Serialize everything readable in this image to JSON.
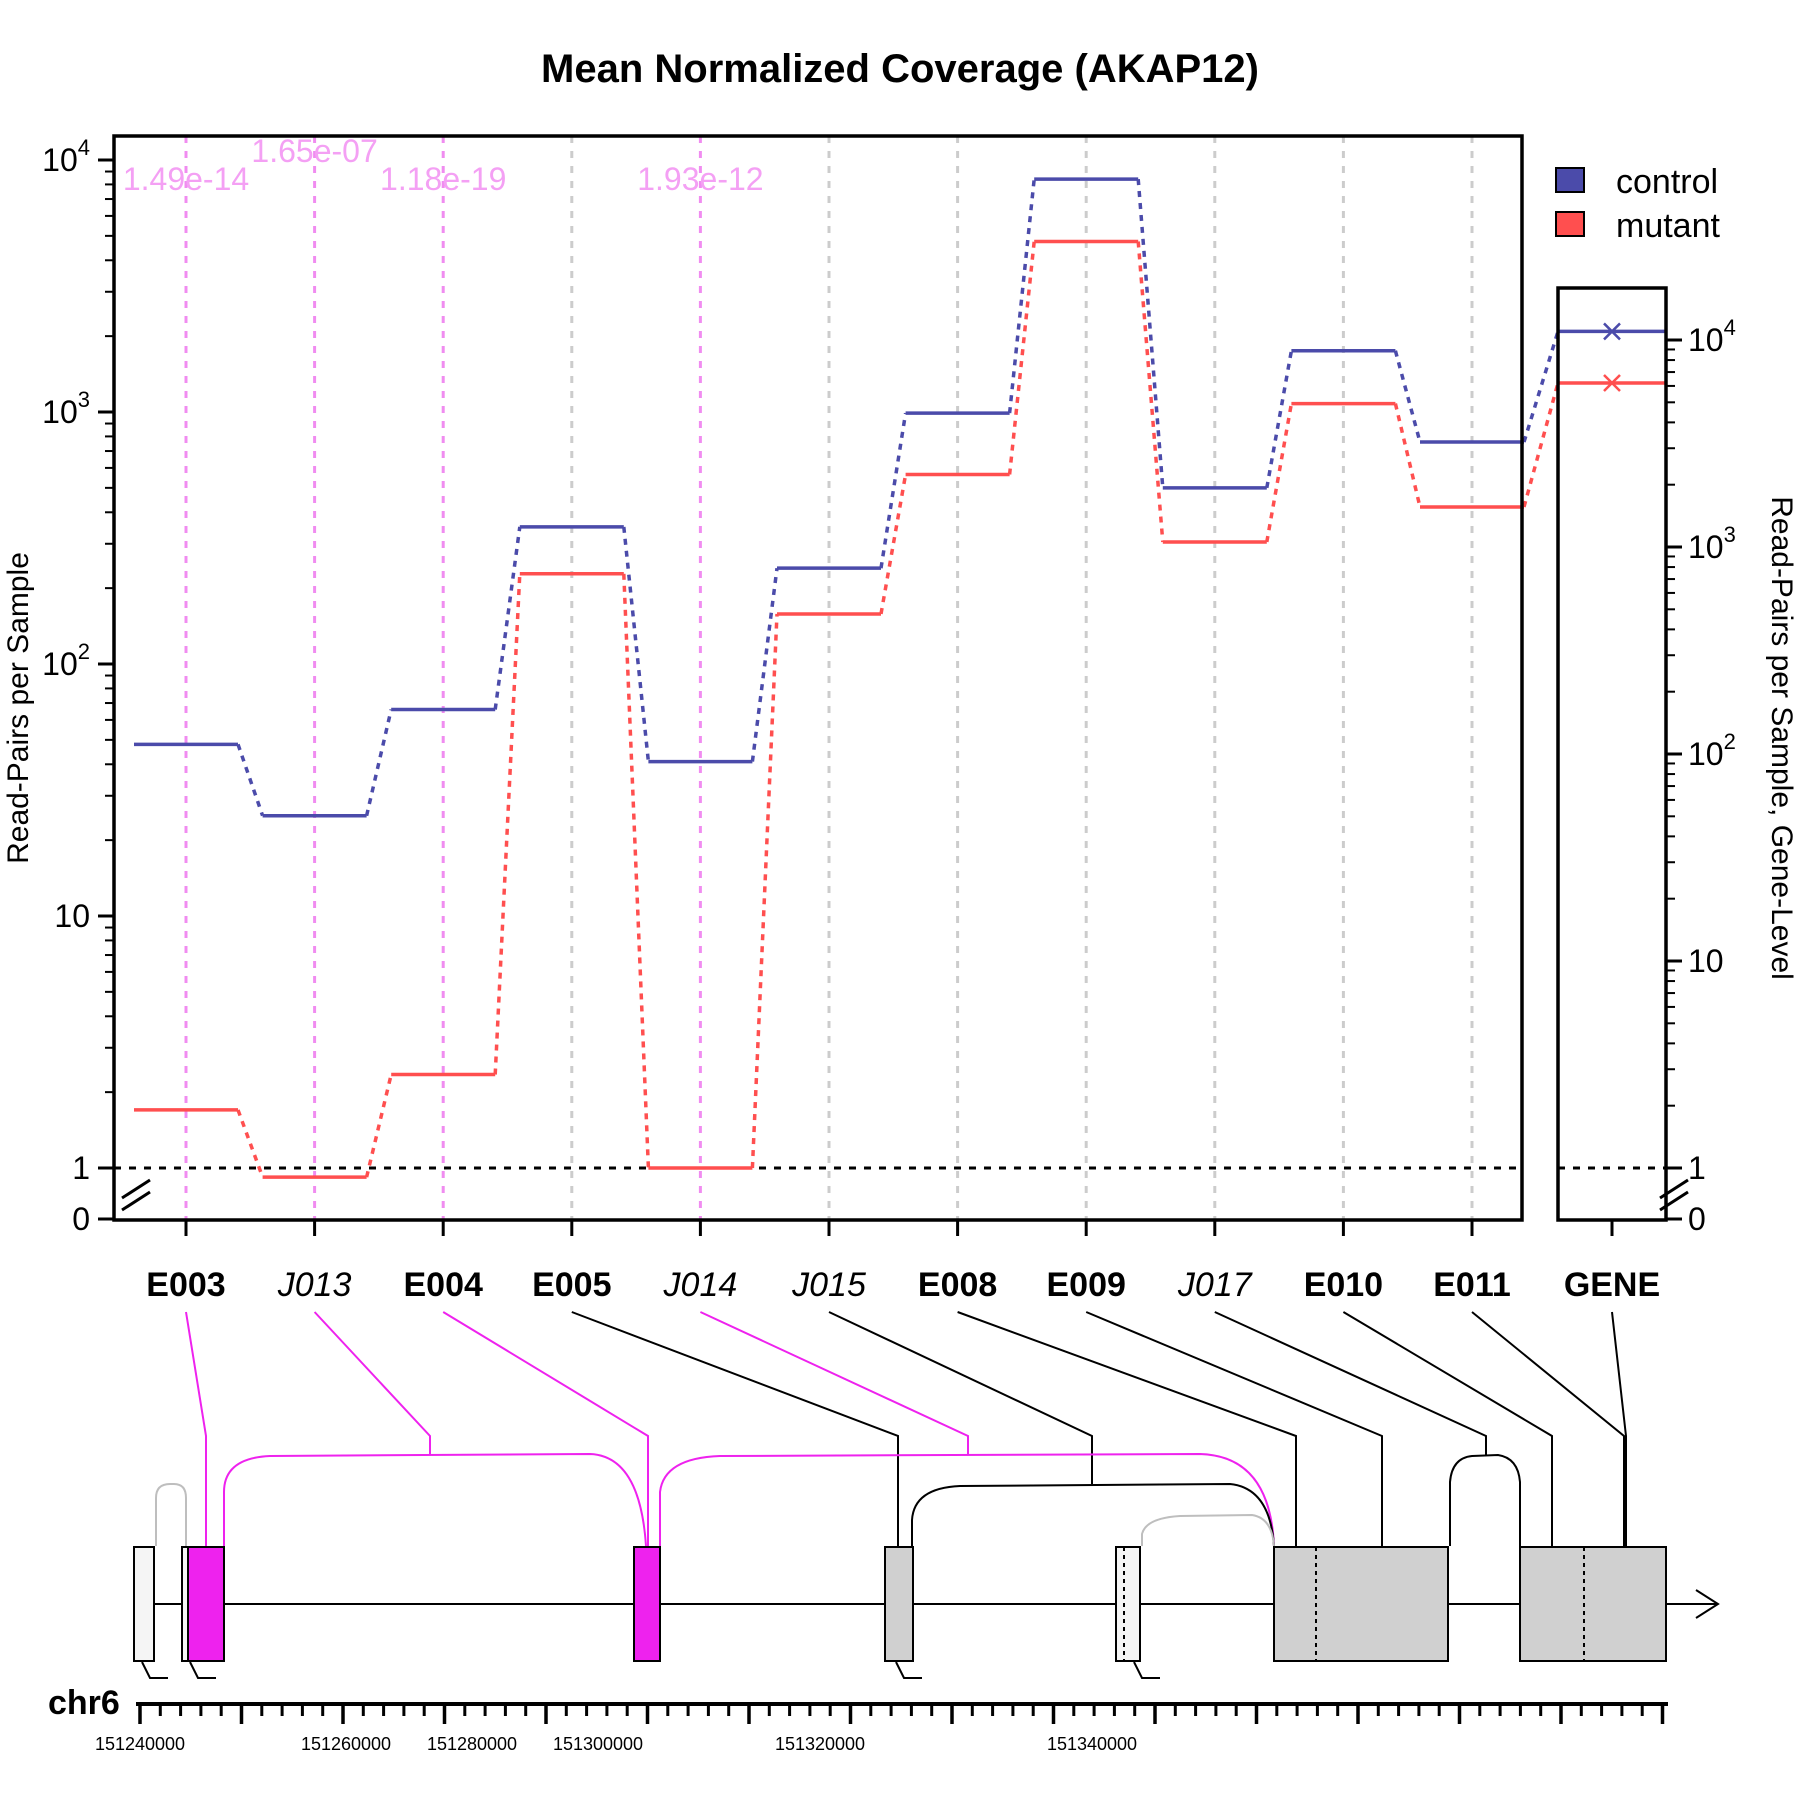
{
  "chart_data": {
    "type": "line",
    "title": "Mean Normalized Coverage (AKAP12)",
    "ylabel": "Read-Pairs per Sample",
    "ylabel_right": "Read-Pairs per Sample, Gene-Level",
    "yscale": "log",
    "y_tick_labels": [
      "0",
      "1",
      "10",
      "10",
      "10",
      "10"
    ],
    "y_tick_exponents": [
      "",
      "",
      "",
      "2",
      "3",
      "4"
    ],
    "features": [
      {
        "id": "E003",
        "kind": "exon"
      },
      {
        "id": "J013",
        "kind": "junction"
      },
      {
        "id": "E004",
        "kind": "exon"
      },
      {
        "id": "E005",
        "kind": "exon"
      },
      {
        "id": "J014",
        "kind": "junction"
      },
      {
        "id": "J015",
        "kind": "junction"
      },
      {
        "id": "E008",
        "kind": "exon"
      },
      {
        "id": "E009",
        "kind": "exon"
      },
      {
        "id": "J017",
        "kind": "junction"
      },
      {
        "id": "E010",
        "kind": "exon"
      },
      {
        "id": "E011",
        "kind": "exon"
      }
    ],
    "series": [
      {
        "name": "control",
        "color": "#4B4BAA",
        "values": [
          48,
          25,
          66,
          350,
          41,
          240,
          990,
          8400,
          500,
          1750,
          760
        ]
      },
      {
        "name": "mutant",
        "color": "#FF4F4F",
        "values": [
          1.7,
          0.92,
          2.35,
          228,
          1.0,
          158,
          565,
          4750,
          305,
          1080,
          420
        ]
      }
    ],
    "significant_features": [
      {
        "feature": "E003",
        "pvalue": "1.49e-14"
      },
      {
        "feature": "J013",
        "pvalue": "1.65e-07"
      },
      {
        "feature": "E004",
        "pvalue": "1.18e-19"
      },
      {
        "feature": "J014",
        "pvalue": "1.93e-12"
      }
    ],
    "gene_panel": {
      "label": "GENE",
      "y_tick_labels": [
        "0",
        "1",
        "10",
        "10",
        "10",
        "10"
      ],
      "y_tick_exponents": [
        "",
        "",
        "",
        "2",
        "3",
        "4"
      ],
      "control": 11000,
      "mutant": 6200
    },
    "legend": {
      "placement": "top-right",
      "entries": [
        {
          "label": "control",
          "color": "#4B4BAA"
        },
        {
          "label": "mutant",
          "color": "#FF4F4F"
        }
      ]
    },
    "reference_line": 1,
    "grid": "vertical dashed at features",
    "genomic_axis": {
      "chromosome": "chr6",
      "tick_labels": [
        "151240000",
        "151260000",
        "151280000",
        "151300000",
        "151320000",
        "151340000"
      ],
      "gene_direction": "forward"
    },
    "colors": {
      "significant": "#EE22EE",
      "pvalue_text": "#F4A0F4",
      "exon_fill": "#D0D0D0",
      "significant_exon_fill": "#EE22EE"
    }
  }
}
